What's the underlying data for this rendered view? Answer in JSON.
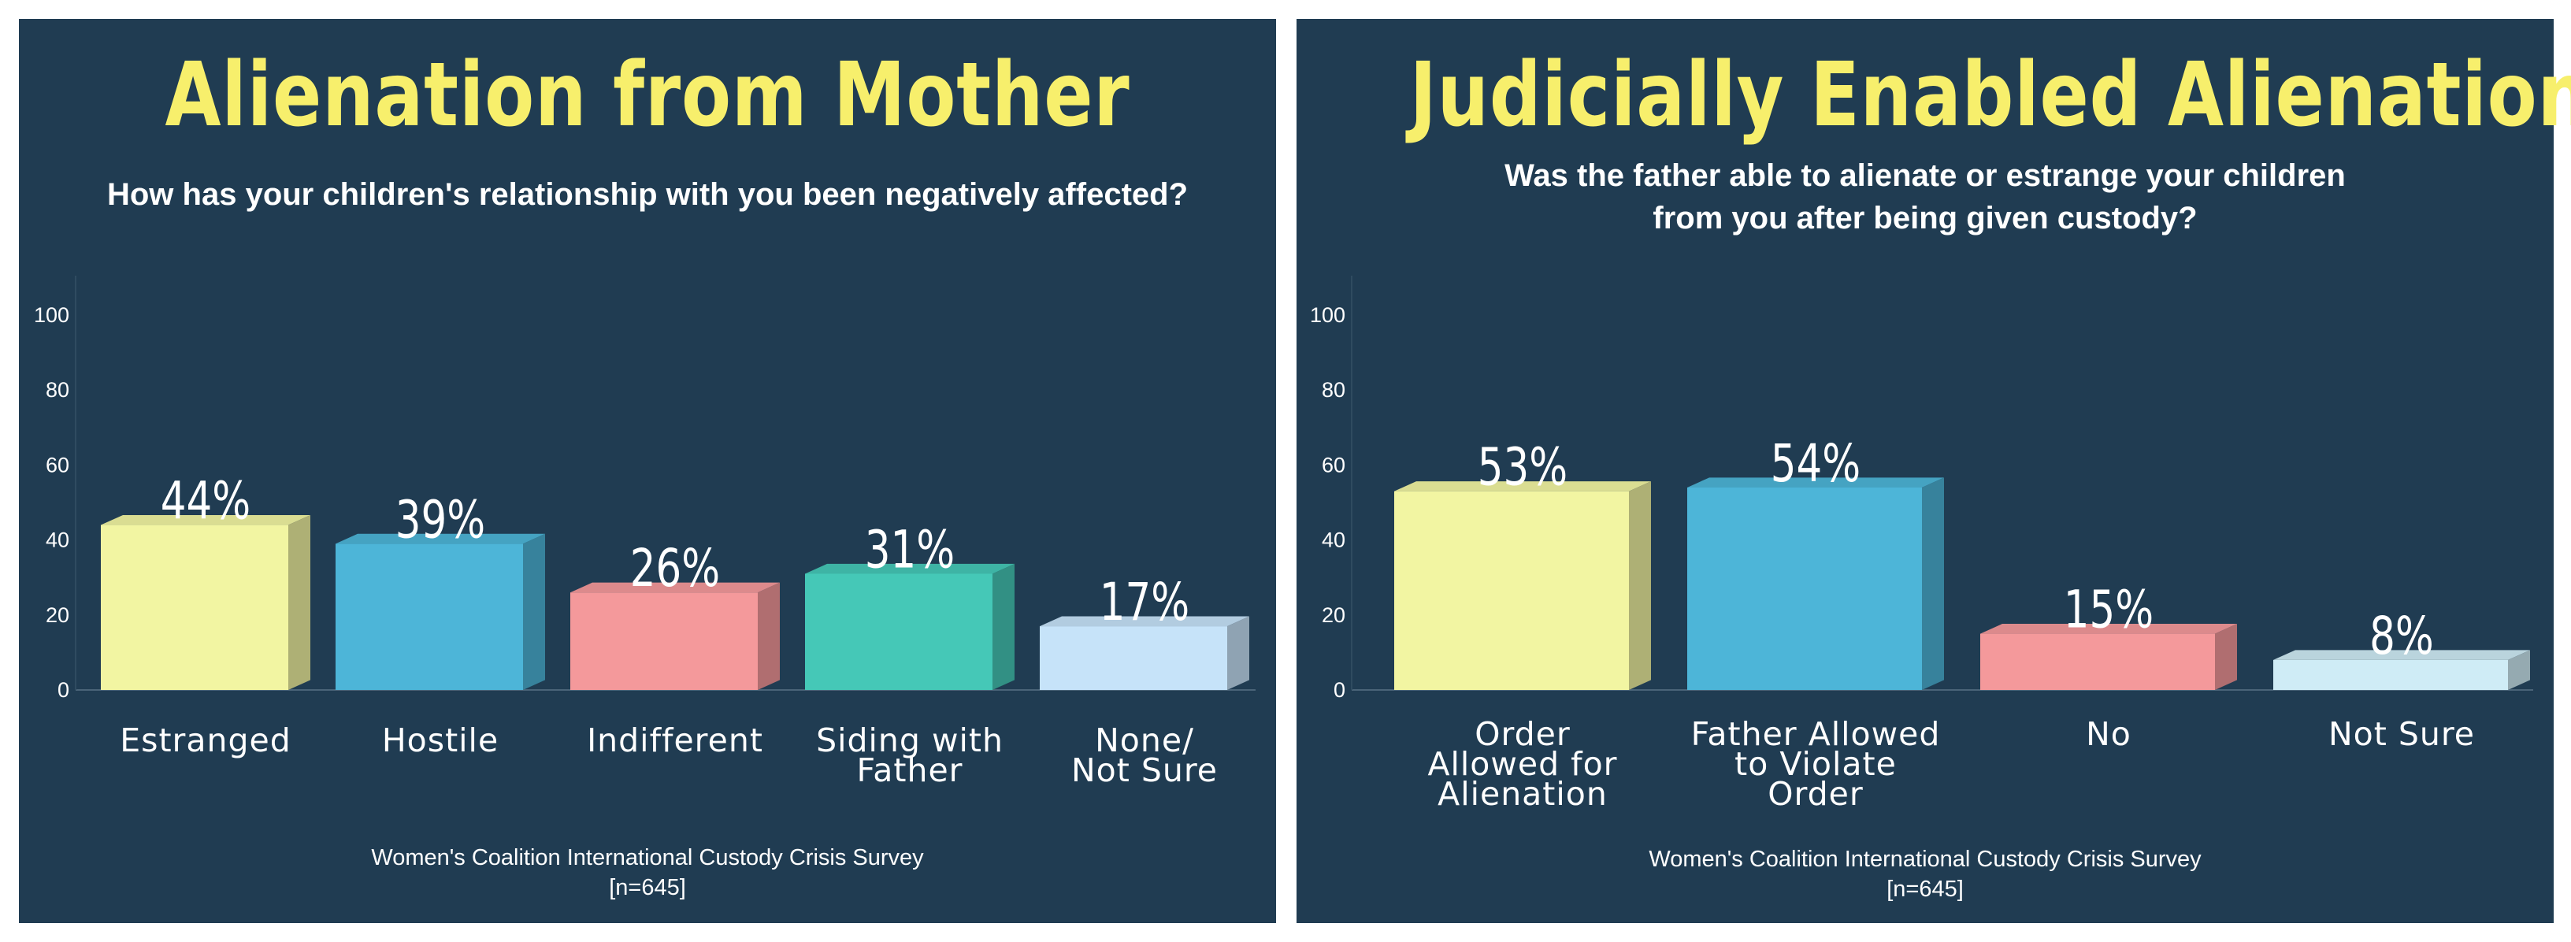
{
  "chart_data": [
    {
      "type": "bar",
      "title": "Alienation from Mother",
      "subtitle": "How has your children's relationship with you been negatively affected?",
      "categories": [
        [
          "Estranged"
        ],
        [
          "Hostile"
        ],
        [
          "Indifferent"
        ],
        [
          "Siding with",
          "Father"
        ],
        [
          "None/",
          "Not Sure"
        ]
      ],
      "values": [
        44,
        39,
        26,
        31,
        17
      ],
      "value_labels": [
        "44%",
        "39%",
        "26%",
        "31%",
        "17%"
      ],
      "colors": [
        "#f2f5a2",
        "#4db5d8",
        "#f4999b",
        "#45c8b7",
        "#c6e3f9"
      ],
      "ylim": [
        0,
        100
      ],
      "yticks": [
        "0",
        "20",
        "40",
        "60",
        "80",
        "100"
      ],
      "grid": false,
      "source": "Women's Coalition International Custody Crisis Survey",
      "sample": "[n=645]"
    },
    {
      "type": "bar",
      "title": "Judicially Enabled Alienation",
      "subtitle": [
        "Was the father able to alienate or estrange your children",
        "from you after being given custody?"
      ],
      "categories": [
        [
          "Order",
          "Allowed for",
          "Alienation"
        ],
        [
          "Father Allowed",
          "to Violate",
          "Order"
        ],
        [
          "No"
        ],
        [
          "Not Sure"
        ]
      ],
      "values": [
        53,
        54,
        15,
        8
      ],
      "value_labels": [
        "53%",
        "54%",
        "15%",
        "8%"
      ],
      "colors": [
        "#f2f5a2",
        "#4db5d8",
        "#f4999b",
        "#cfecf6"
      ],
      "ylim": [
        0,
        100
      ],
      "yticks": [
        "0",
        "20",
        "40",
        "60",
        "80",
        "100"
      ],
      "grid": false,
      "source": "Women's Coalition International Custody Crisis Survey",
      "sample": "[n=645]"
    }
  ]
}
